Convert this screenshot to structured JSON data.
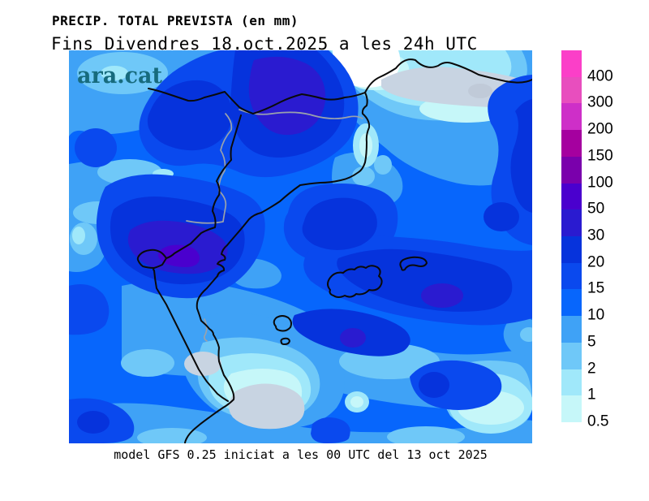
{
  "header": {
    "title": "PRECIP. TOTAL PREVISTA (en mm)",
    "subtitle": "Fins Divendres 18.oct.2025 a les 24h UTC"
  },
  "watermark": "ara.cat",
  "footer": {
    "caption": "model GFS 0.25 iniciat a les 00 UTC del 13 oct 2025"
  },
  "legend": {
    "units": "mm",
    "entries": [
      {
        "label": "400",
        "color": "#FB3FC8"
      },
      {
        "label": "300",
        "color": "#E84EBE"
      },
      {
        "label": "200",
        "color": "#CE2FC8"
      },
      {
        "label": "150",
        "color": "#A5009F"
      },
      {
        "label": "100",
        "color": "#7A00AC"
      },
      {
        "label": "50",
        "color": "#4A00CE"
      },
      {
        "label": "30",
        "color": "#2A1BD0"
      },
      {
        "label": "20",
        "color": "#0633DC"
      },
      {
        "label": "15",
        "color": "#0A49EE"
      },
      {
        "label": "10",
        "color": "#0766FC"
      },
      {
        "label": "5",
        "color": "#3FA2F6"
      },
      {
        "label": "2",
        "color": "#6FC8F8"
      },
      {
        "label": "1",
        "color": "#A0E8FA"
      },
      {
        "label": "0.5",
        "color": "#C6F7F9"
      }
    ]
  },
  "map": {
    "description": "Filled-contour forecast precipitation map over Catalonia, Valencia, Aragon, Balearic Islands and southern France",
    "max_band_mm": "50-100",
    "colors": {
      "watermark_teal": "#176b7d",
      "no_precip_white": "#ffffff",
      "gray_patch": "#C8D4E2",
      "coastline": "#0a0a0a",
      "admin_border": "#9aa2ac"
    }
  }
}
